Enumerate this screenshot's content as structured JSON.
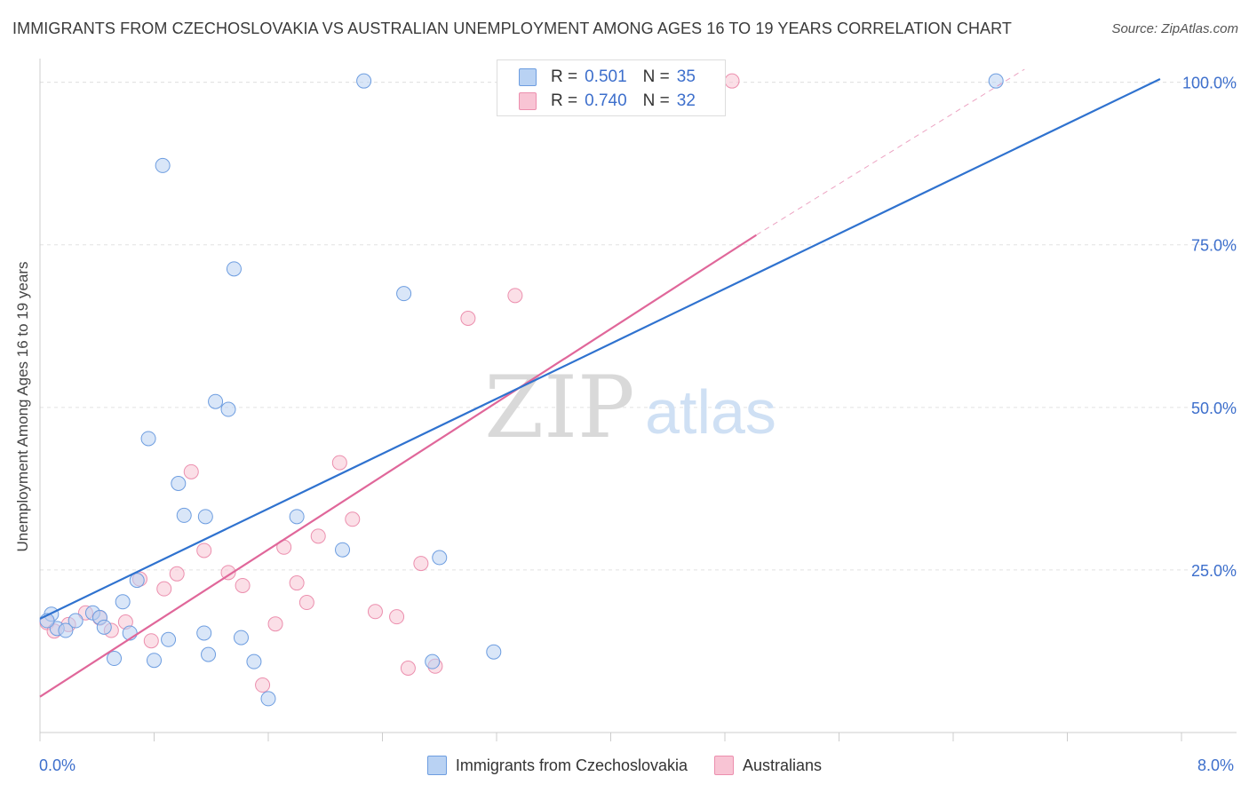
{
  "header": {
    "title": "IMMIGRANTS FROM CZECHOSLOVAKIA VS AUSTRALIAN UNEMPLOYMENT AMONG AGES 16 TO 19 YEARS CORRELATION CHART",
    "source": "Source: ZipAtlas.com"
  },
  "watermark": {
    "zip": "ZIP",
    "atlas": "atlas"
  },
  "stats": {
    "r_label": "R =",
    "n_label": "N =",
    "rows": [
      {
        "r": "0.501",
        "n": "35"
      },
      {
        "r": "0.740",
        "n": "32"
      }
    ]
  },
  "colors": {
    "blue_fill": "#b9d2f3",
    "blue_stroke": "#6d9de0",
    "blue_line": "#2f72cf",
    "pink_fill": "#f8c4d4",
    "pink_stroke": "#ec8fae",
    "pink_line": "#e0679a",
    "tick_text": "#3d6fcc",
    "grid": "#e2e2e2"
  },
  "chart_data": {
    "type": "scatter",
    "title": "IMMIGRANTS FROM CZECHOSLOVAKIA VS AUSTRALIAN UNEMPLOYMENT AMONG AGES 16 TO 19 YEARS CORRELATION CHART",
    "xlabel": "",
    "ylabel": "Unemployment Among Ages 16 to 19 years",
    "xlim": [
      0,
      8
    ],
    "ylim": [
      0,
      102
    ],
    "x_tick_labels": [
      "0.0%",
      "8.0%"
    ],
    "y_tick_labels": [
      "25.0%",
      "50.0%",
      "75.0%",
      "100.0%"
    ],
    "y_ticks": [
      25,
      50,
      75,
      100
    ],
    "grid": "horizontal dashed",
    "legend_position": "bottom",
    "series": [
      {
        "name": "Immigrants from Czechoslovakia",
        "color": "blue",
        "R": 0.501,
        "N": 35,
        "trend": [
          [
            0,
            17.5
          ],
          [
            7.85,
            100.5
          ]
        ],
        "points": [
          [
            0.08,
            18.2
          ],
          [
            0.12,
            16
          ],
          [
            0.18,
            15.7
          ],
          [
            0.25,
            17.2
          ],
          [
            0.37,
            18.4
          ],
          [
            0.42,
            17.7
          ],
          [
            0.45,
            16.2
          ],
          [
            0.52,
            11.4
          ],
          [
            0.58,
            20.1
          ],
          [
            0.63,
            15.3
          ],
          [
            0.68,
            23.4
          ],
          [
            0.76,
            45.2
          ],
          [
            0.8,
            11.1
          ],
          [
            0.86,
            87.2
          ],
          [
            0.9,
            14.3
          ],
          [
            0.97,
            38.3
          ],
          [
            1.01,
            33.4
          ],
          [
            1.16,
            33.2
          ],
          [
            1.15,
            15.3
          ],
          [
            1.23,
            50.9
          ],
          [
            1.32,
            49.7
          ],
          [
            1.36,
            71.3
          ],
          [
            1.41,
            14.6
          ],
          [
            1.5,
            10.9
          ],
          [
            1.6,
            5.2
          ],
          [
            1.8,
            33.2
          ],
          [
            2.12,
            28.1
          ],
          [
            2.27,
            100.2
          ],
          [
            2.55,
            67.5
          ],
          [
            2.75,
            10.9
          ],
          [
            2.8,
            26.9
          ],
          [
            3.18,
            12.4
          ],
          [
            6.7,
            100.2
          ],
          [
            0.05,
            17.2
          ],
          [
            1.18,
            12.0
          ]
        ]
      },
      {
        "name": "Australians",
        "color": "pink",
        "R": 0.74,
        "N": 32,
        "trend": [
          [
            0,
            5.5
          ],
          [
            5.02,
            76.5
          ]
        ],
        "trend_extended": [
          [
            5.02,
            76.5
          ],
          [
            6.9,
            102
          ]
        ],
        "points": [
          [
            0.05,
            16.9
          ],
          [
            0.1,
            15.6
          ],
          [
            0.2,
            16.6
          ],
          [
            0.32,
            18.4
          ],
          [
            0.42,
            17.6
          ],
          [
            0.5,
            15.7
          ],
          [
            0.6,
            17.0
          ],
          [
            0.7,
            23.6
          ],
          [
            0.78,
            14.1
          ],
          [
            0.87,
            22.1
          ],
          [
            0.96,
            24.4
          ],
          [
            1.06,
            40.1
          ],
          [
            1.15,
            28.0
          ],
          [
            1.32,
            24.6
          ],
          [
            1.42,
            22.6
          ],
          [
            1.56,
            7.3
          ],
          [
            1.65,
            16.7
          ],
          [
            1.71,
            28.5
          ],
          [
            1.8,
            23.0
          ],
          [
            1.87,
            20.0
          ],
          [
            1.95,
            30.2
          ],
          [
            2.1,
            41.5
          ],
          [
            2.19,
            32.8
          ],
          [
            2.35,
            18.6
          ],
          [
            2.5,
            17.8
          ],
          [
            2.58,
            9.9
          ],
          [
            2.67,
            26.0
          ],
          [
            2.77,
            10.2
          ],
          [
            3.0,
            63.7
          ],
          [
            3.33,
            67.2
          ],
          [
            4.45,
            100.2
          ],
          [
            4.85,
            100.2
          ]
        ]
      }
    ]
  }
}
